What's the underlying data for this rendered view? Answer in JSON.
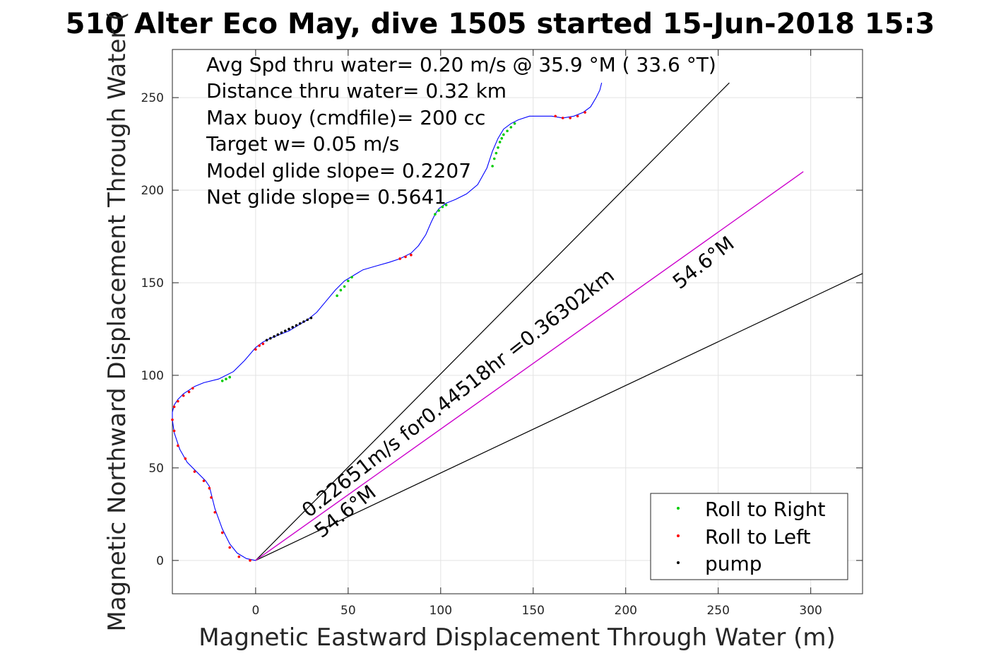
{
  "chart_data": {
    "type": "line",
    "title": "510 Alter Eco May, dive 1505 started 15-Jun-2018 15:3",
    "xlabel": "Magnetic Eastward Displacement Through Water (m)",
    "ylabel": "Magnetic Northward Displacement Through Water (",
    "xlim": [
      -45,
      328
    ],
    "ylim": [
      -18,
      276
    ],
    "xticks": [
      0,
      50,
      100,
      150,
      200,
      250,
      300
    ],
    "yticks": [
      0,
      50,
      100,
      150,
      200,
      250
    ],
    "grid": true,
    "info_lines": [
      "Avg Spd thru water=  0.20 m/s @  35.9 °M ( 33.6 °T)",
      "Distance thru water=  0.32 km",
      "Max buoy (cmdfile)= 200 cc",
      "Target w= 0.05 m/s",
      "Model glide slope= 0.2207",
      "Net glide slope= 0.5641"
    ],
    "annotations": [
      {
        "text": "0.22651m/s for0.44518hr =0.36302km"
      },
      {
        "text": "54.6°M"
      },
      {
        "text": "54.6°M"
      }
    ],
    "track": {
      "name": "track",
      "color": "#0000ff",
      "x": [
        0,
        -5,
        -10,
        -14,
        -18,
        -22,
        -24,
        -25,
        -27,
        -31,
        -37,
        -41,
        -44,
        -45,
        -45,
        -44,
        -42,
        -39,
        -36,
        -33,
        -28,
        -20,
        -12,
        -6,
        0,
        4,
        8,
        13,
        18,
        23,
        28,
        33,
        38,
        43,
        48,
        53,
        58,
        65,
        72,
        78,
        84,
        88,
        92,
        95,
        97,
        99,
        103,
        108,
        114,
        120,
        125,
        128,
        131,
        134,
        138,
        142,
        148,
        154,
        160,
        166,
        172,
        177,
        181,
        184,
        186,
        187
      ],
      "y": [
        0,
        1,
        4,
        9,
        17,
        28,
        36,
        40,
        43,
        47,
        53,
        60,
        69,
        76,
        80,
        84,
        87,
        90,
        92,
        94,
        96,
        98,
        102,
        108,
        115,
        118,
        120,
        122,
        124,
        127,
        130,
        134,
        140,
        146,
        151,
        154,
        157,
        159,
        161,
        163,
        166,
        170,
        176,
        183,
        187,
        190,
        193,
        195,
        198,
        203,
        212,
        221,
        228,
        233,
        236,
        238,
        240,
        240,
        240,
        239,
        240,
        242,
        245,
        250,
        254,
        258
      ]
    },
    "roll_right": {
      "name": "Roll to Right",
      "color": "#00cc00",
      "x": [
        -18,
        -16,
        -14,
        44,
        46,
        48,
        50,
        52,
        97,
        99,
        101,
        103,
        128,
        129,
        130,
        131,
        132,
        133,
        134,
        136,
        138,
        140
      ],
      "y": [
        97,
        98,
        99,
        143,
        146,
        148,
        151,
        153,
        187,
        189,
        191,
        192,
        213,
        217,
        220,
        223,
        226,
        228,
        230,
        232,
        234,
        236
      ]
    },
    "roll_left": {
      "name": "Roll to Left",
      "color": "#ff0000",
      "x": [
        -3,
        -9,
        -14,
        -18,
        -22,
        -24,
        -25,
        -28,
        -33,
        -38,
        -42,
        -44,
        -45,
        -44,
        -42,
        -39,
        -36,
        -34,
        0,
        2,
        4,
        78,
        81,
        84,
        162,
        166,
        170,
        174,
        178
      ],
      "y": [
        0,
        2,
        7,
        15,
        26,
        34,
        39,
        43,
        48,
        55,
        62,
        70,
        76,
        83,
        86,
        89,
        91,
        93,
        114,
        116,
        117,
        163,
        164,
        165,
        240,
        239,
        239,
        240,
        242
      ]
    },
    "pump": {
      "name": "pump",
      "color": "#000000",
      "x": [
        6,
        8,
        10,
        12,
        14,
        16,
        18,
        20,
        22,
        24,
        26,
        28,
        30
      ],
      "y": [
        119,
        120,
        121,
        122,
        123,
        124,
        125,
        126,
        127,
        128,
        129,
        130,
        131
      ]
    },
    "current_line": {
      "name": "current",
      "color": "#cc00cc",
      "x": [
        0,
        296
      ],
      "y": [
        0,
        210
      ]
    },
    "ref_lines": [
      {
        "x": [
          0,
          256
        ],
        "y": [
          0,
          258
        ]
      },
      {
        "x": [
          0,
          328
        ],
        "y": [
          0,
          155
        ]
      }
    ],
    "legend_placement": "bottom-right"
  }
}
